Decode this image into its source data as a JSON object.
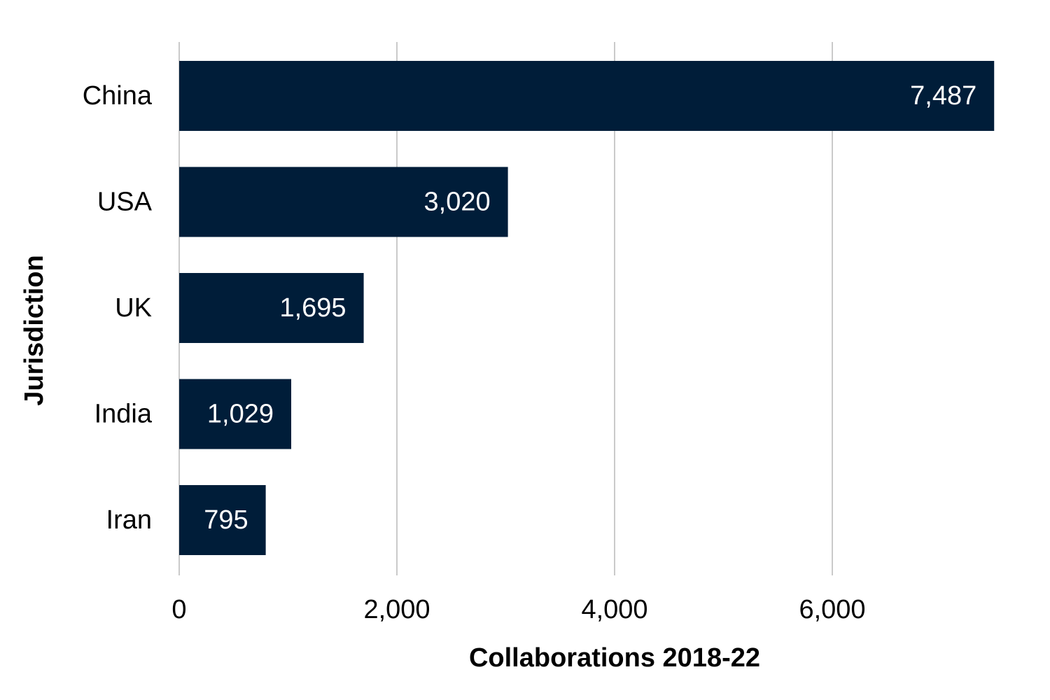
{
  "chart_data": {
    "type": "bar",
    "orientation": "horizontal",
    "title": "",
    "xlabel": "Collaborations 2018-22",
    "ylabel": "Jurisdiction",
    "categories": [
      "China",
      "USA",
      "UK",
      "India",
      "Iran"
    ],
    "values": [
      7487,
      3020,
      1695,
      1029,
      795
    ],
    "value_labels": [
      "7,487",
      "3,020",
      "1,695",
      "1,029",
      "795"
    ],
    "xticks": [
      0,
      2000,
      4000,
      6000
    ],
    "xtick_labels": [
      "0",
      "2,000",
      "4,000",
      "6,000"
    ],
    "xlim": [
      0,
      7500
    ],
    "grid": "vertical",
    "legend": "none",
    "colors": {
      "bar": "#001d39",
      "grid": "#b8b8b8",
      "value_label": "#ffffff",
      "text": "#000000"
    }
  }
}
